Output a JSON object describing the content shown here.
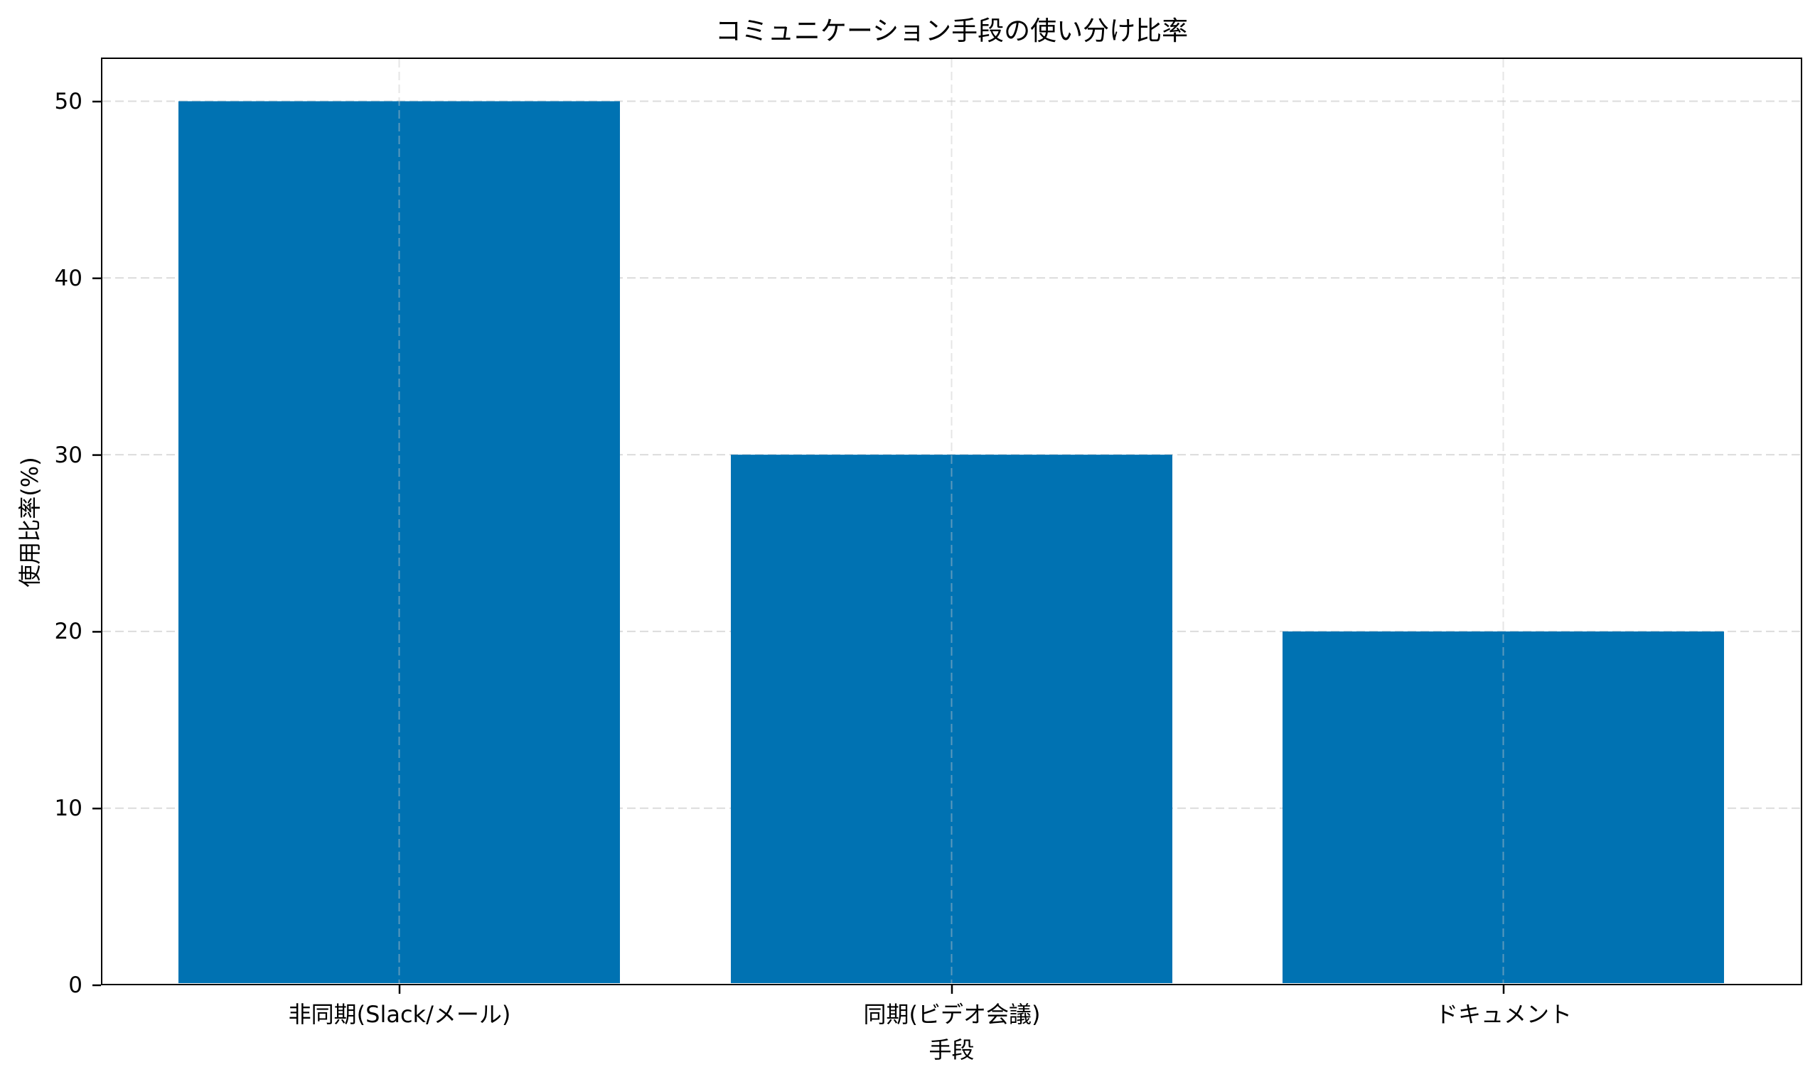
{
  "chart_data": {
    "type": "bar",
    "title": "コミュニケーション手段の使い分け比率",
    "xlabel": "手段",
    "ylabel": "使用比率(%)",
    "categories": [
      "非同期(Slack/メール)",
      "同期(ビデオ会議)",
      "ドキュメント"
    ],
    "values": [
      50,
      30,
      20
    ],
    "ylim": [
      0,
      52.5
    ],
    "yticks": [
      0,
      10,
      20,
      30,
      40,
      50
    ],
    "grid": true,
    "grid_style": "dashed",
    "legend": null,
    "bar_color": "#0072B2"
  },
  "labels": {
    "title": "コミュニケーション手段の使い分け比率",
    "xlabel": "手段",
    "ylabel": "使用比率(%)",
    "yticks": [
      "0",
      "10",
      "20",
      "30",
      "40",
      "50"
    ],
    "xticks": [
      "非同期(Slack/メール)",
      "同期(ビデオ会議)",
      "ドキュメント"
    ]
  },
  "colors": {
    "bar": "#0072B2",
    "grid": "#dcdcdc",
    "axis": "#000000",
    "background": "#ffffff"
  }
}
